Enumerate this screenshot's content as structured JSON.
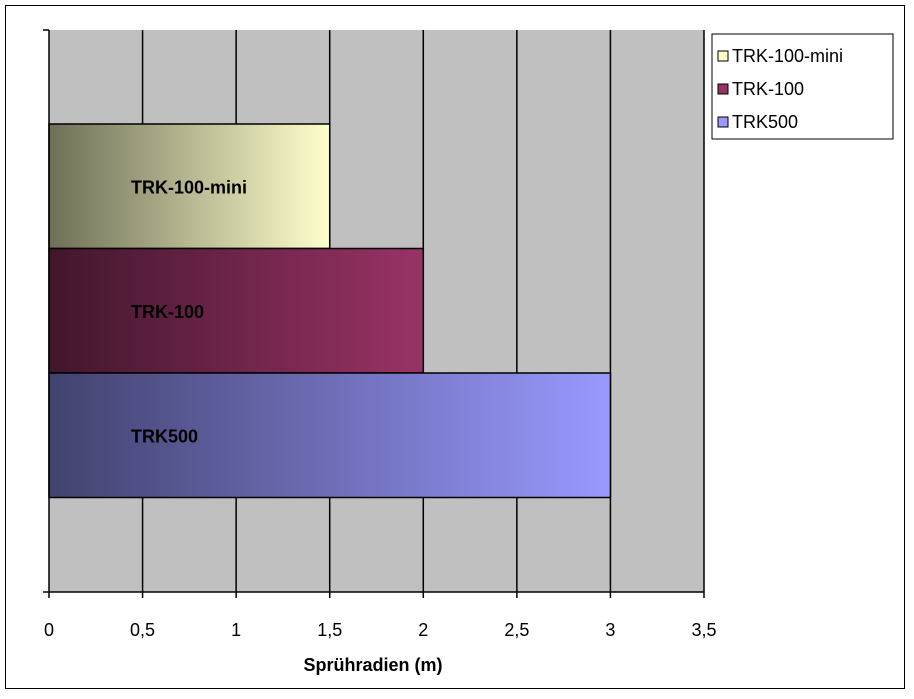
{
  "chart_data": {
    "type": "bar",
    "orientation": "horizontal",
    "xlabel": "Sprühradien (m)",
    "xlim": [
      0,
      3.5
    ],
    "xticks": [
      0,
      0.5,
      1,
      1.5,
      2,
      2.5,
      3,
      3.5
    ],
    "xtick_labels": [
      "0",
      "0,5",
      "1",
      "1,5",
      "2",
      "2,5",
      "3",
      "3,5"
    ],
    "grid": true,
    "plot_background": "#c0c0c0",
    "legend_position": "top-right",
    "series": [
      {
        "name": "TRK-100-mini",
        "value": 1.5,
        "label": "TRK-100-mini",
        "color": "#ffffcc",
        "color_dark": "#6f6f58"
      },
      {
        "name": "TRK-100",
        "value": 2,
        "label": "TRK-100",
        "color": "#993366",
        "color_dark": "#42162c"
      },
      {
        "name": "TRK500",
        "value": 3,
        "label": "TRK500",
        "color": "#9999ff",
        "color_dark": "#42426f"
      }
    ]
  }
}
